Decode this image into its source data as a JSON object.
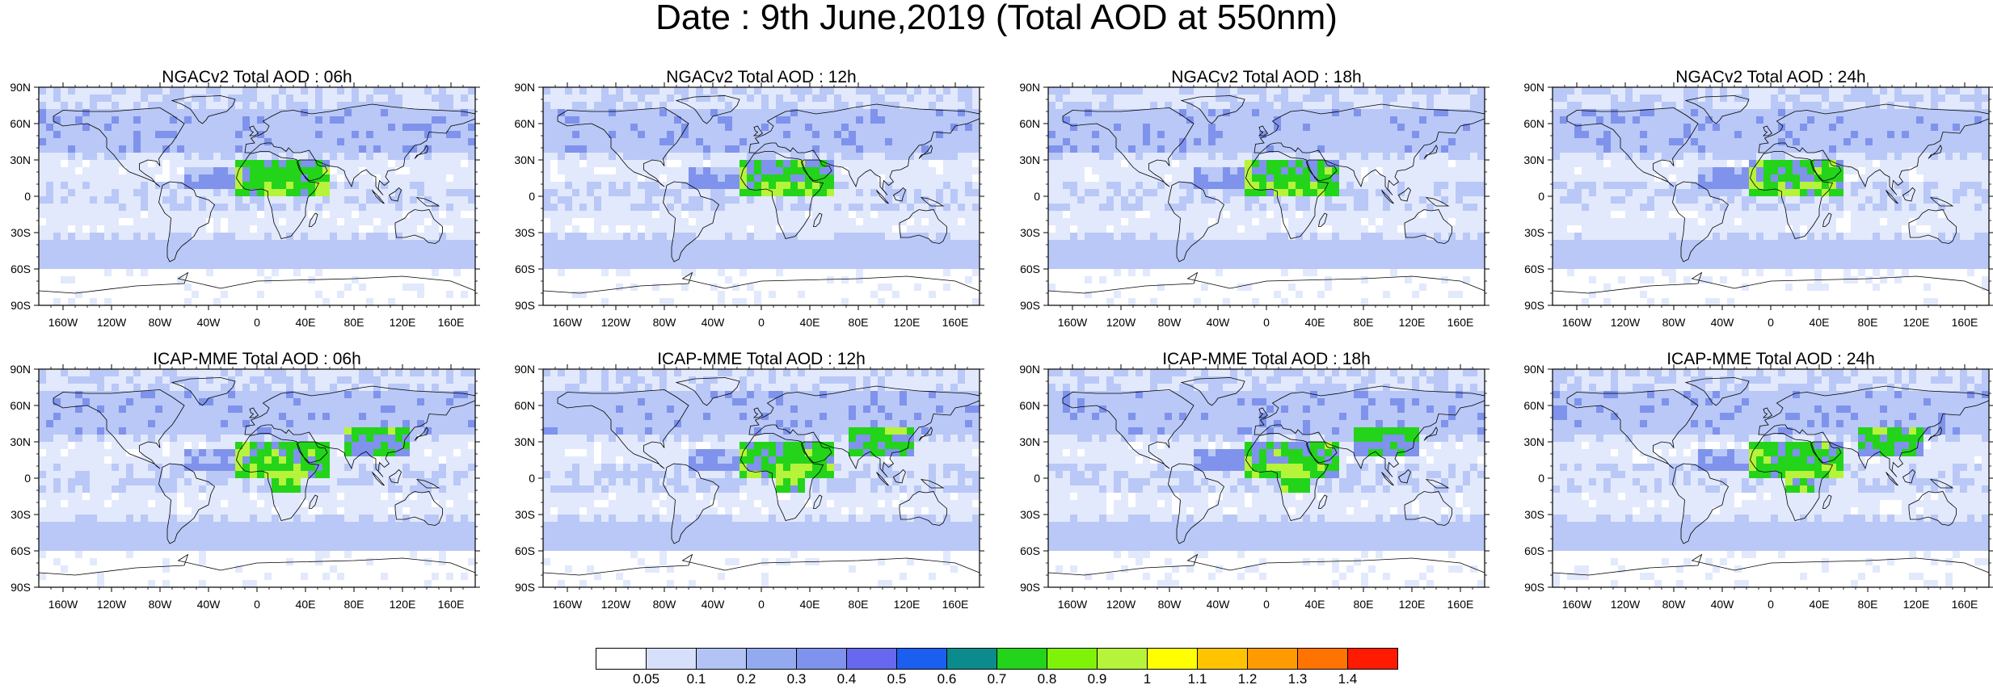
{
  "title": "Date : 9th June,2019 (Total AOD at 550nm)",
  "latitude_labels": [
    "90N",
    "60N",
    "30N",
    "0",
    "30S",
    "60S",
    "90S"
  ],
  "longitude_labels": [
    "160W",
    "120W",
    "80W",
    "40W",
    "0",
    "40E",
    "80E",
    "120E",
    "160E"
  ],
  "panels": [
    {
      "title": "NGACv2 Total AOD : 06h",
      "model": "NGACv2",
      "hour": "06h"
    },
    {
      "title": "NGACv2 Total AOD : 12h",
      "model": "NGACv2",
      "hour": "12h"
    },
    {
      "title": "NGACv2 Total AOD : 18h",
      "model": "NGACv2",
      "hour": "18h"
    },
    {
      "title": "NGACv2 Total AOD : 24h",
      "model": "NGACv2",
      "hour": "24h"
    },
    {
      "title": "ICAP-MME Total AOD : 06h",
      "model": "ICAP-MME",
      "hour": "06h"
    },
    {
      "title": "ICAP-MME Total AOD : 12h",
      "model": "ICAP-MME",
      "hour": "12h"
    },
    {
      "title": "ICAP-MME Total AOD : 18h",
      "model": "ICAP-MME",
      "hour": "18h"
    },
    {
      "title": "ICAP-MME Total AOD : 24h",
      "model": "ICAP-MME",
      "hour": "24h"
    }
  ],
  "colorbar": {
    "labels": [
      "0.05",
      "0.1",
      "0.2",
      "0.3",
      "0.4",
      "0.5",
      "0.6",
      "0.7",
      "0.8",
      "0.9",
      "1",
      "1.1",
      "1.2",
      "1.3",
      "1.4"
    ],
    "colors": [
      "#ffffff",
      "#d6e0fb",
      "#b3c3f6",
      "#93aaf1",
      "#7e92ee",
      "#6767ef",
      "#1a5ff0",
      "#0b8b8b",
      "#23d41a",
      "#7ff20a",
      "#b6f33b",
      "#ffff00",
      "#ffc300",
      "#ff9b00",
      "#ff7300",
      "#ff1a00"
    ]
  },
  "map_colors": {
    "ocean_base": "#e2e9fc",
    "light": "#ffffff",
    "mid": "#b9c8f6",
    "heavy": "#7f93ec",
    "dust": "#23d41a",
    "dust_high": "#b6f33b"
  }
}
